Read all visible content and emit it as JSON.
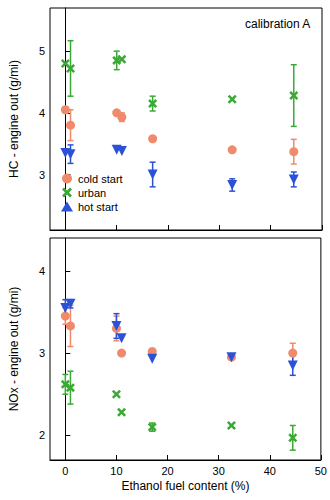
{
  "chart_data": [
    {
      "type": "scatter",
      "ylabel": "HC - engine out (g/mi)",
      "annotation": "calibration A",
      "xlim": [
        -3,
        50
      ],
      "xticks": [
        0,
        10,
        20,
        30,
        40,
        50
      ],
      "ylim": [
        2.1,
        5.7
      ],
      "yticks": [
        3,
        4,
        5
      ],
      "tick_labels": "y",
      "grid": false,
      "legend": "lower left",
      "x": [
        0,
        1,
        10,
        11,
        17,
        32.5,
        44.5
      ],
      "series": [
        {
          "name": "cold start",
          "color": "#f08a6c",
          "marker": "circle",
          "values": [
            4.05,
            3.8,
            4.0,
            3.93,
            3.58,
            3.4,
            3.37
          ],
          "errors": [
            0.05,
            0.25,
            null,
            0.07,
            null,
            null,
            0.2
          ]
        },
        {
          "name": "urban",
          "color": "#3aaa35",
          "marker": "x",
          "values": [
            4.8,
            4.72,
            4.85,
            4.87,
            4.15,
            4.22,
            4.28
          ],
          "errors": [
            null,
            0.45,
            0.15,
            null,
            0.12,
            null,
            0.5
          ]
        },
        {
          "name": "hot start",
          "color": "#2b52d6",
          "marker": "triangle_down",
          "values": [
            3.35,
            3.33,
            3.4,
            3.38,
            3.0,
            2.83,
            2.92
          ],
          "errors": [
            null,
            0.15,
            null,
            null,
            0.2,
            0.1,
            0.12
          ]
        }
      ]
    },
    {
      "type": "scatter",
      "xlabel": "Ethanol fuel content (%)",
      "ylabel": "NOx - engine out (g/mi)",
      "xlim": [
        -3,
        50
      ],
      "xticks": [
        0,
        10,
        20,
        30,
        40,
        50
      ],
      "ylim": [
        1.7,
        4.4
      ],
      "yticks": [
        2,
        3,
        4
      ],
      "grid": false,
      "x": [
        0,
        1,
        10,
        11,
        17,
        32.5,
        44.5
      ],
      "series": [
        {
          "name": "cold start",
          "color": "#f08a6c",
          "marker": "circle",
          "values": [
            3.45,
            3.33,
            3.3,
            3.0,
            3.02,
            2.95,
            3.0
          ],
          "errors": [
            0.1,
            0.25,
            0.15,
            null,
            null,
            null,
            0.12
          ]
        },
        {
          "name": "urban",
          "color": "#3aaa35",
          "marker": "x",
          "values": [
            2.62,
            2.58,
            2.5,
            2.28,
            2.1,
            2.12,
            1.97
          ],
          "errors": [
            0.12,
            0.2,
            null,
            null,
            0.05,
            null,
            0.15
          ]
        },
        {
          "name": "hot start",
          "color": "#2b52d6",
          "marker": "triangle_down",
          "values": [
            3.55,
            3.6,
            3.33,
            3.18,
            2.93,
            2.95,
            2.85
          ],
          "errors": [
            0.1,
            0.05,
            0.15,
            null,
            null,
            null,
            0.12
          ]
        }
      ]
    }
  ]
}
